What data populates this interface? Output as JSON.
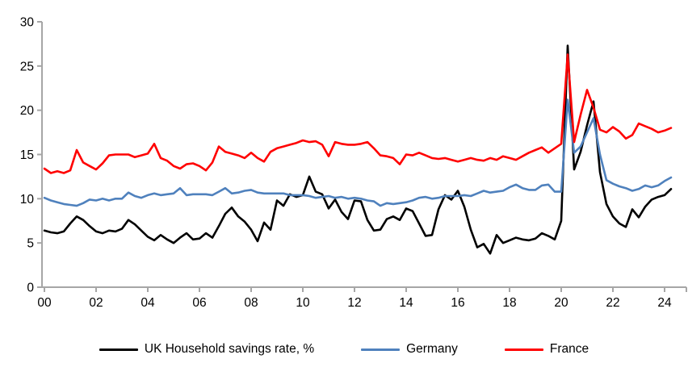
{
  "chart_data": {
    "type": "line",
    "title": "",
    "xlabel": "",
    "ylabel": "",
    "grid": false,
    "legend_position": "bottom",
    "ylim": [
      0,
      30
    ],
    "y_ticks": [
      0,
      5,
      10,
      15,
      20,
      25,
      30
    ],
    "y_tick_labels": [
      "0",
      "5",
      "10",
      "15",
      "20",
      "25",
      "30"
    ],
    "x_tick_years": [
      2000,
      2002,
      2004,
      2006,
      2008,
      2010,
      2012,
      2014,
      2016,
      2018,
      2020,
      2022,
      2024
    ],
    "x_tick_labels": [
      "00",
      "02",
      "04",
      "06",
      "08",
      "10",
      "12",
      "14",
      "16",
      "18",
      "20",
      "22",
      "24"
    ],
    "x_start": 2000.0,
    "x_step": 0.25,
    "axis_color": "#a6a6a6",
    "series": [
      {
        "name": "UK Household savings rate, %",
        "color": "#000000",
        "values": [
          6.4,
          6.2,
          6.1,
          6.3,
          7.2,
          8.0,
          7.6,
          6.9,
          6.3,
          6.1,
          6.4,
          6.3,
          6.6,
          7.6,
          7.1,
          6.4,
          5.7,
          5.3,
          5.9,
          5.4,
          5.0,
          5.6,
          6.1,
          5.4,
          5.5,
          6.1,
          5.6,
          6.9,
          8.3,
          9.0,
          8.0,
          7.4,
          6.5,
          5.2,
          7.3,
          6.5,
          9.8,
          9.2,
          10.5,
          10.2,
          10.4,
          12.5,
          10.8,
          10.5,
          8.9,
          9.9,
          8.5,
          7.7,
          9.8,
          9.7,
          7.6,
          6.4,
          6.5,
          7.7,
          8.0,
          7.6,
          8.9,
          8.6,
          7.2,
          5.8,
          5.9,
          8.8,
          10.4,
          9.9,
          10.9,
          9.1,
          6.5,
          4.5,
          4.9,
          3.8,
          5.9,
          5.0,
          5.3,
          5.6,
          5.4,
          5.3,
          5.5,
          6.1,
          5.8,
          5.4,
          7.5,
          27.3,
          13.3,
          15.3,
          18.3,
          21.0,
          13.0,
          9.4,
          8.0,
          7.2,
          6.8,
          8.8,
          7.9,
          9.1,
          9.9,
          10.2,
          10.4,
          11.1
        ]
      },
      {
        "name": "Germany",
        "color": "#4f81bd",
        "values": [
          10.1,
          9.8,
          9.6,
          9.4,
          9.3,
          9.2,
          9.5,
          9.9,
          9.8,
          10.0,
          9.8,
          10.0,
          10.0,
          10.7,
          10.3,
          10.1,
          10.4,
          10.6,
          10.4,
          10.5,
          10.6,
          11.2,
          10.4,
          10.5,
          10.5,
          10.5,
          10.4,
          10.8,
          11.2,
          10.6,
          10.7,
          10.9,
          11.0,
          10.7,
          10.6,
          10.6,
          10.6,
          10.6,
          10.4,
          10.4,
          10.4,
          10.3,
          10.1,
          10.2,
          10.3,
          10.1,
          10.2,
          10.0,
          10.1,
          10.0,
          9.8,
          9.7,
          9.2,
          9.5,
          9.4,
          9.5,
          9.6,
          9.8,
          10.1,
          10.2,
          10.0,
          10.1,
          10.3,
          10.3,
          10.3,
          10.4,
          10.3,
          10.6,
          10.9,
          10.7,
          10.8,
          10.9,
          11.3,
          11.6,
          11.2,
          11.0,
          11.0,
          11.5,
          11.6,
          10.8,
          10.8,
          21.2,
          15.2,
          15.9,
          17.5,
          19.1,
          15.0,
          12.1,
          11.7,
          11.4,
          11.2,
          10.9,
          11.1,
          11.5,
          11.3,
          11.5,
          12.0,
          12.4
        ]
      },
      {
        "name": "France",
        "color": "#ff0000",
        "values": [
          13.4,
          12.9,
          13.1,
          12.9,
          13.2,
          15.5,
          14.1,
          13.7,
          13.3,
          14.0,
          14.9,
          15.0,
          15.0,
          15.0,
          14.7,
          14.9,
          15.1,
          16.2,
          14.6,
          14.3,
          13.7,
          13.4,
          13.9,
          14.0,
          13.7,
          13.2,
          14.1,
          15.9,
          15.3,
          15.1,
          14.9,
          14.6,
          15.2,
          14.6,
          14.2,
          15.3,
          15.7,
          15.9,
          16.1,
          16.3,
          16.6,
          16.4,
          16.5,
          16.1,
          14.8,
          16.4,
          16.2,
          16.1,
          16.1,
          16.2,
          16.4,
          15.7,
          14.9,
          14.8,
          14.6,
          13.9,
          15.0,
          14.9,
          15.2,
          14.9,
          14.6,
          14.5,
          14.6,
          14.4,
          14.2,
          14.4,
          14.6,
          14.4,
          14.3,
          14.6,
          14.4,
          14.8,
          14.6,
          14.4,
          14.8,
          15.2,
          15.5,
          15.8,
          15.2,
          15.7,
          16.2,
          26.3,
          16.4,
          19.5,
          22.3,
          20.3,
          17.8,
          17.5,
          18.1,
          17.6,
          16.8,
          17.2,
          18.5,
          18.2,
          17.9,
          17.5,
          17.7,
          18.0
        ]
      }
    ]
  },
  "legend": {
    "items": [
      {
        "label": "UK Household savings rate, %"
      },
      {
        "label": "Germany"
      },
      {
        "label": "France"
      }
    ]
  }
}
